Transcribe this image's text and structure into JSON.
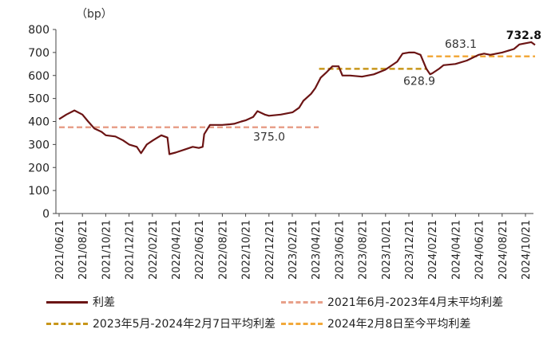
{
  "chart_data": {
    "type": "line",
    "unit_label": "（bp）",
    "ylim": [
      0,
      800
    ],
    "yticks": [
      0,
      100,
      200,
      300,
      400,
      500,
      600,
      700,
      800
    ],
    "xticks": [
      "2021/06/21",
      "2021/08/21",
      "2021/10/21",
      "2021/12/21",
      "2022/02/21",
      "2022/04/21",
      "2022/06/21",
      "2022/08/21",
      "2022/10/21",
      "2022/12/21",
      "2023/02/21",
      "2023/04/21",
      "2023/06/21",
      "2023/08/21",
      "2023/10/21",
      "2023/12/21",
      "2024/02/21",
      "2024/04/21",
      "2024/06/21",
      "2024/08/21",
      "2024/10/21"
    ],
    "series": [
      {
        "name": "利差",
        "color": "#6b1414",
        "points": [
          [
            "2021/06/21",
            410
          ],
          [
            "2021/07/10",
            430
          ],
          [
            "2021/07/31",
            448
          ],
          [
            "2021/08/21",
            430
          ],
          [
            "2021/09/05",
            400
          ],
          [
            "2021/09/21",
            370
          ],
          [
            "2021/10/10",
            355
          ],
          [
            "2021/10/21",
            340
          ],
          [
            "2021/11/15",
            335
          ],
          [
            "2021/12/05",
            318
          ],
          [
            "2021/12/21",
            300
          ],
          [
            "2022/01/10",
            290
          ],
          [
            "2022/01/21",
            262
          ],
          [
            "2022/02/05",
            300
          ],
          [
            "2022/02/21",
            318
          ],
          [
            "2022/03/05",
            330
          ],
          [
            "2022/03/15",
            340
          ],
          [
            "2022/03/31",
            330
          ],
          [
            "2022/04/05",
            258
          ],
          [
            "2022/04/21",
            265
          ],
          [
            "2022/05/15",
            278
          ],
          [
            "2022/06/05",
            290
          ],
          [
            "2022/06/21",
            285
          ],
          [
            "2022/07/01",
            290
          ],
          [
            "2022/07/05",
            345
          ],
          [
            "2022/07/20",
            385
          ],
          [
            "2022/08/21",
            385
          ],
          [
            "2022/09/10",
            388
          ],
          [
            "2022/09/21",
            390
          ],
          [
            "2022/10/10",
            400
          ],
          [
            "2022/10/21",
            405
          ],
          [
            "2022/11/10",
            420
          ],
          [
            "2022/11/21",
            445
          ],
          [
            "2022/12/10",
            430
          ],
          [
            "2022/12/21",
            425
          ],
          [
            "2023/01/21",
            430
          ],
          [
            "2023/02/21",
            440
          ],
          [
            "2023/03/10",
            460
          ],
          [
            "2023/03/21",
            490
          ],
          [
            "2023/04/10",
            520
          ],
          [
            "2023/04/21",
            545
          ],
          [
            "2023/05/05",
            590
          ],
          [
            "2023/05/21",
            615
          ],
          [
            "2023/06/05",
            640
          ],
          [
            "2023/06/21",
            640
          ],
          [
            "2023/07/01",
            600
          ],
          [
            "2023/07/21",
            600
          ],
          [
            "2023/08/21",
            595
          ],
          [
            "2023/09/21",
            605
          ],
          [
            "2023/10/21",
            625
          ],
          [
            "2023/11/21",
            660
          ],
          [
            "2023/12/05",
            695
          ],
          [
            "2023/12/21",
            700
          ],
          [
            "2024/01/05",
            700
          ],
          [
            "2024/01/21",
            690
          ],
          [
            "2024/02/05",
            630
          ],
          [
            "2024/02/15",
            605
          ],
          [
            "2024/02/21",
            610
          ],
          [
            "2024/03/10",
            630
          ],
          [
            "2024/03/21",
            645
          ],
          [
            "2024/04/21",
            650
          ],
          [
            "2024/05/21",
            665
          ],
          [
            "2024/06/21",
            690
          ],
          [
            "2024/07/05",
            695
          ],
          [
            "2024/07/21",
            690
          ],
          [
            "2024/08/21",
            700
          ],
          [
            "2024/09/21",
            715
          ],
          [
            "2024/10/05",
            735
          ],
          [
            "2024/10/21",
            740
          ],
          [
            "2024/11/05",
            745
          ],
          [
            "2024/11/15",
            732.8
          ]
        ]
      },
      {
        "name": "2021年6月-2023年4月末平均利差",
        "color": "#e8a08a",
        "style": "dashed",
        "value": 375.0,
        "from": "2021/06/21",
        "to": "2023/04/30",
        "label": "375.0"
      },
      {
        "name": "2023年5月-2024年2月7日平均利差",
        "color": "#c8961a",
        "style": "dashed",
        "value": 628.9,
        "from": "2023/05/01",
        "to": "2024/02/07",
        "label": "628.9"
      },
      {
        "name": "2024年2月8日至今平均利差",
        "color": "#f2a93b",
        "style": "dashed",
        "value": 683.1,
        "from": "2024/02/08",
        "to": "2024/11/15",
        "label": "683.1"
      }
    ],
    "last_value_label": "732.8",
    "grid": false
  }
}
